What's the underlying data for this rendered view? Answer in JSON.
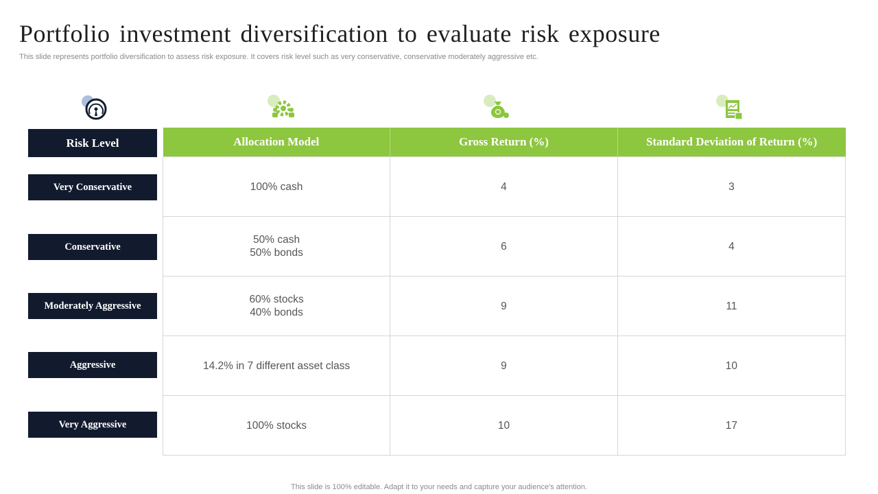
{
  "title": "Portfolio investment diversification to evaluate risk exposure",
  "subtitle": "This slide represents portfolio diversification to assess risk exposure. It covers risk level such as very conservative, conservative moderately aggressive etc.",
  "footer": "This slide is 100% editable. Adapt it to your needs and capture your audience's attention.",
  "colors": {
    "navy": "#121b2e",
    "green": "#8dc63f",
    "light_green": "#d9ecc0"
  },
  "icons": [
    "speedometer-icon",
    "team-gear-icon",
    "money-bag-icon",
    "report-document-icon"
  ],
  "risk_header": "Risk Level",
  "headers": [
    "Allocation Model",
    "Gross Return (%)",
    "Standard Deviation of Return (%)"
  ],
  "rows": [
    {
      "risk": "Very Conservative",
      "allocation": "100% cash",
      "gross": "4",
      "stddev": "3"
    },
    {
      "risk": "Conservative",
      "allocation": "50% cash\n50% bonds",
      "gross": "6",
      "stddev": "4"
    },
    {
      "risk": "Moderately Aggressive",
      "allocation": "60% stocks\n40% bonds",
      "gross": "9",
      "stddev": "11"
    },
    {
      "risk": "Aggressive",
      "allocation": "14.2% in 7 different asset class",
      "gross": "9",
      "stddev": "10"
    },
    {
      "risk": "Very Aggressive",
      "allocation": "100% stocks",
      "gross": "10",
      "stddev": "17"
    }
  ]
}
